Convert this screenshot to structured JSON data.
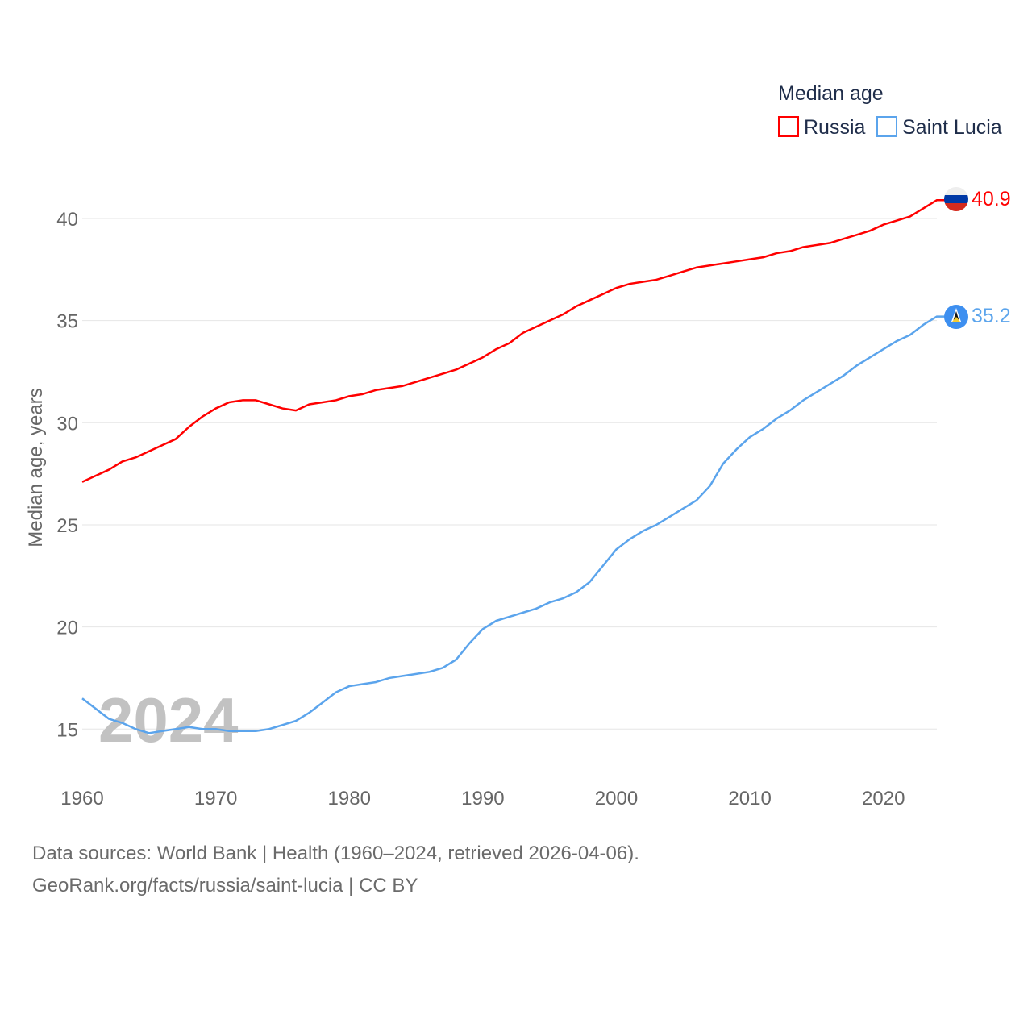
{
  "chart_data": {
    "type": "line",
    "legend_title": "Median age",
    "legend_position": "top-right",
    "ylabel": "Median age, years",
    "xlabel": "",
    "ylim": [
      13,
      42
    ],
    "xlim": [
      1960,
      2024
    ],
    "grid": true,
    "yticks": [
      15,
      20,
      25,
      30,
      35,
      40
    ],
    "xticks": [
      1960,
      1970,
      1980,
      1990,
      2000,
      2010,
      2020
    ],
    "year_watermark": "2024",
    "x": [
      1960,
      1961,
      1962,
      1963,
      1964,
      1965,
      1966,
      1967,
      1968,
      1969,
      1970,
      1971,
      1972,
      1973,
      1974,
      1975,
      1976,
      1977,
      1978,
      1979,
      1980,
      1981,
      1982,
      1983,
      1984,
      1985,
      1986,
      1987,
      1988,
      1989,
      1990,
      1991,
      1992,
      1993,
      1994,
      1995,
      1996,
      1997,
      1998,
      1999,
      2000,
      2001,
      2002,
      2003,
      2004,
      2005,
      2006,
      2007,
      2008,
      2009,
      2010,
      2011,
      2012,
      2013,
      2014,
      2015,
      2016,
      2017,
      2018,
      2019,
      2020,
      2021,
      2022,
      2023,
      2024
    ],
    "series": [
      {
        "name": "Russia",
        "color": "#ff0000",
        "end_label": "40.9",
        "values": [
          27.1,
          27.4,
          27.7,
          28.1,
          28.3,
          28.6,
          28.9,
          29.2,
          29.8,
          30.3,
          30.7,
          31.0,
          31.1,
          31.1,
          30.9,
          30.7,
          30.6,
          30.9,
          31.0,
          31.1,
          31.3,
          31.4,
          31.6,
          31.7,
          31.8,
          32.0,
          32.2,
          32.4,
          32.6,
          32.9,
          33.2,
          33.6,
          33.9,
          34.4,
          34.7,
          35.0,
          35.3,
          35.7,
          36.0,
          36.3,
          36.6,
          36.8,
          36.9,
          37.0,
          37.2,
          37.4,
          37.6,
          37.7,
          37.8,
          37.9,
          38.0,
          38.1,
          38.3,
          38.4,
          38.6,
          38.7,
          38.8,
          39.0,
          39.2,
          39.4,
          39.7,
          39.9,
          40.1,
          40.5,
          40.9
        ]
      },
      {
        "name": "Saint Lucia",
        "color": "#5ba4ec",
        "end_label": "35.2",
        "values": [
          16.5,
          16.0,
          15.5,
          15.3,
          15.0,
          14.8,
          14.9,
          15.0,
          15.1,
          15.0,
          15.0,
          14.9,
          14.9,
          14.9,
          15.0,
          15.2,
          15.4,
          15.8,
          16.3,
          16.8,
          17.1,
          17.2,
          17.3,
          17.5,
          17.6,
          17.7,
          17.8,
          18.0,
          18.4,
          19.2,
          19.9,
          20.3,
          20.5,
          20.7,
          20.9,
          21.2,
          21.4,
          21.7,
          22.2,
          23.0,
          23.8,
          24.3,
          24.7,
          25.0,
          25.4,
          25.8,
          26.2,
          26.9,
          28.0,
          28.7,
          29.3,
          29.7,
          30.2,
          30.6,
          31.1,
          31.5,
          31.9,
          32.3,
          32.8,
          33.2,
          33.6,
          34.0,
          34.3,
          34.8,
          35.2
        ]
      }
    ]
  },
  "footer": {
    "line1": "Data sources: World Bank | Health (1960–2024, retrieved 2026-04-06).",
    "line2": "GeoRank.org/facts/russia/saint-lucia | CC BY"
  }
}
